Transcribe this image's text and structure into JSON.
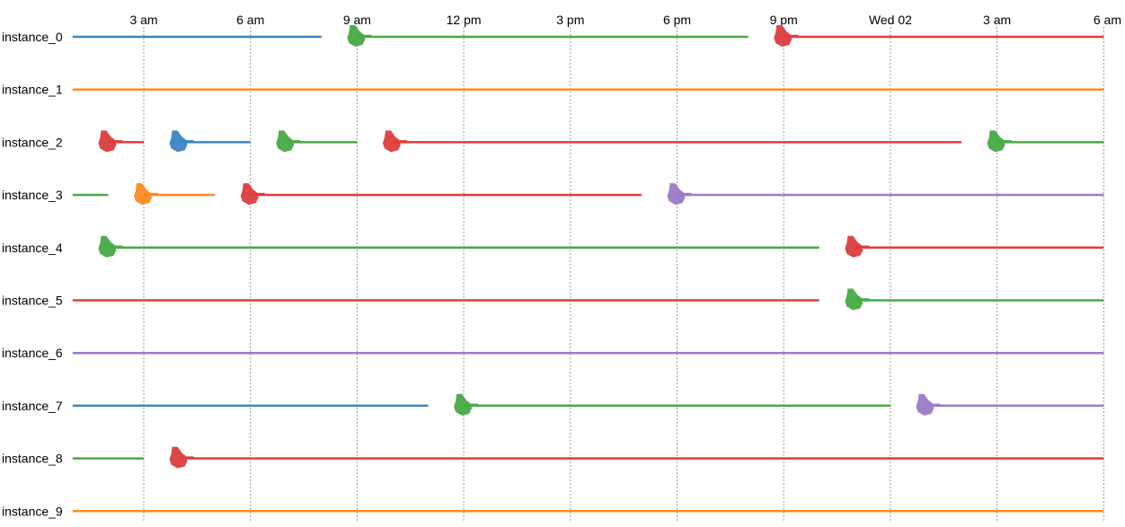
{
  "chart_data": {
    "type": "timeline",
    "x_unit": "hours from midnight of the first day",
    "x_range": [
      -4.5,
      30.5
    ],
    "ticks": [
      {
        "x": 3,
        "label": "3 am"
      },
      {
        "x": 6,
        "label": "6 am"
      },
      {
        "x": 9,
        "label": "9 am"
      },
      {
        "x": 12,
        "label": "12 pm"
      },
      {
        "x": 15,
        "label": "3 pm"
      },
      {
        "x": 18,
        "label": "6 pm"
      },
      {
        "x": 21,
        "label": "9 pm"
      },
      {
        "x": 24,
        "label": "Wed 02"
      },
      {
        "x": 27,
        "label": "3 am"
      },
      {
        "x": 30,
        "label": "6 am"
      }
    ],
    "state_colors": {
      "blue": "#3a85c4",
      "orange": "#fd8b20",
      "green": "#47aa45",
      "red": "#dc3d3d",
      "purple": "#9b7bc8"
    },
    "rows": [
      {
        "label": "instance_0",
        "segments": [
          {
            "state": "blue",
            "start": 1,
            "end": 8,
            "marker": false
          },
          {
            "state": "green",
            "start": 9,
            "end": 20,
            "marker": true
          },
          {
            "state": "red",
            "start": 21,
            "end": 30,
            "marker": true
          }
        ]
      },
      {
        "label": "instance_1",
        "segments": [
          {
            "state": "orange",
            "start": 1,
            "end": 30,
            "marker": false
          }
        ]
      },
      {
        "label": "instance_2",
        "segments": [
          {
            "state": "red",
            "start": 2,
            "end": 3,
            "marker": true
          },
          {
            "state": "blue",
            "start": 4,
            "end": 6,
            "marker": true
          },
          {
            "state": "green",
            "start": 7,
            "end": 9,
            "marker": true
          },
          {
            "state": "red",
            "start": 10,
            "end": 26,
            "marker": true
          },
          {
            "state": "green",
            "start": 27,
            "end": 30,
            "marker": true
          }
        ]
      },
      {
        "label": "instance_3",
        "segments": [
          {
            "state": "green",
            "start": 1,
            "end": 2,
            "marker": false
          },
          {
            "state": "orange",
            "start": 3,
            "end": 5,
            "marker": true
          },
          {
            "state": "red",
            "start": 6,
            "end": 17,
            "marker": true
          },
          {
            "state": "purple",
            "start": 18,
            "end": 30,
            "marker": true
          }
        ]
      },
      {
        "label": "instance_4",
        "segments": [
          {
            "state": "green",
            "start": 2,
            "end": 22,
            "marker": true
          },
          {
            "state": "red",
            "start": 23,
            "end": 30,
            "marker": true
          }
        ]
      },
      {
        "label": "instance_5",
        "segments": [
          {
            "state": "red",
            "start": 1,
            "end": 22,
            "marker": false
          },
          {
            "state": "green",
            "start": 23,
            "end": 30,
            "marker": true
          }
        ]
      },
      {
        "label": "instance_6",
        "segments": [
          {
            "state": "purple",
            "start": 1,
            "end": 30,
            "marker": false
          }
        ]
      },
      {
        "label": "instance_7",
        "segments": [
          {
            "state": "blue",
            "start": 1,
            "end": 11,
            "marker": false
          },
          {
            "state": "green",
            "start": 12,
            "end": 24,
            "marker": true
          },
          {
            "state": "purple",
            "start": 25,
            "end": 30,
            "marker": true
          }
        ]
      },
      {
        "label": "instance_8",
        "segments": [
          {
            "state": "green",
            "start": 1,
            "end": 3,
            "marker": false
          },
          {
            "state": "red",
            "start": 4,
            "end": 30,
            "marker": true
          }
        ]
      },
      {
        "label": "instance_9",
        "segments": [
          {
            "state": "orange",
            "start": 1,
            "end": 30,
            "marker": false
          }
        ]
      }
    ]
  }
}
